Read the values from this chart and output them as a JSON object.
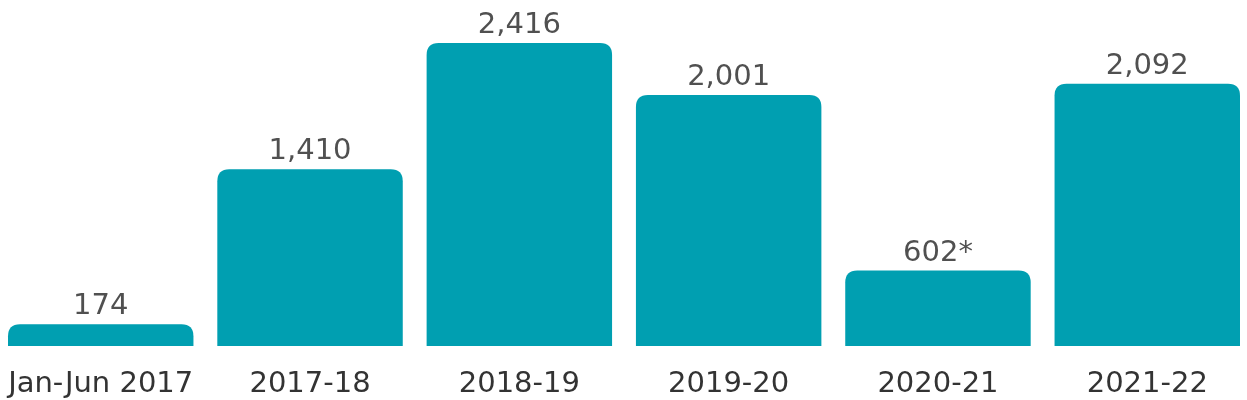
{
  "chart_data": {
    "type": "bar",
    "categories": [
      "Jan-Jun 2017",
      "2017-18",
      "2018-19",
      "2019-20",
      "2020-21",
      "2021-22"
    ],
    "values": [
      174,
      1410,
      2416,
      2001,
      602,
      2092
    ],
    "value_labels": [
      "174",
      "1,410",
      "2,416",
      "2,001",
      "602*",
      "2,092"
    ],
    "color": "#009fb1",
    "relative": false
  }
}
